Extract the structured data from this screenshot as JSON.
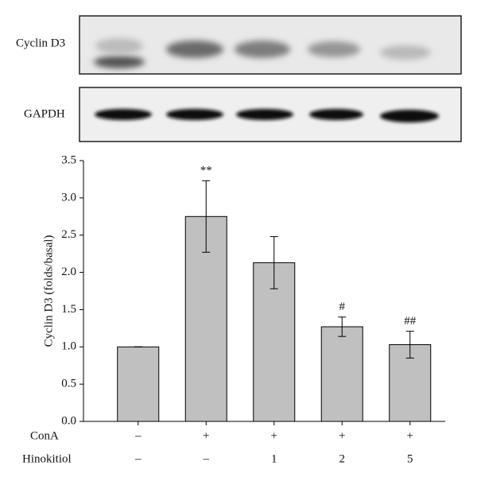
{
  "blots": [
    {
      "label": "Cyclin D3"
    },
    {
      "label": "GAPDH"
    }
  ],
  "chart_data": {
    "type": "bar",
    "y_label": "Cyclin D3 (folds/basal)",
    "values": [
      1.0,
      2.75,
      2.13,
      1.27,
      1.03
    ],
    "errors": [
      0,
      0.48,
      0.35,
      0.13,
      0.18
    ],
    "annotations": [
      null,
      "**",
      null,
      "#",
      "##"
    ],
    "color": "#c0c0c0",
    "ylim": [
      0,
      3.5
    ],
    "yticks": [
      {
        "value": 0,
        "label": "0.0"
      },
      0.5,
      {
        "value": 1,
        "label": "1.0"
      },
      1.5,
      {
        "value": 2,
        "label": "2.0"
      },
      2.5,
      {
        "value": 3,
        "label": "3.0"
      },
      3.5
    ],
    "conditions": [
      {
        "label": "ConA",
        "values": [
          "–",
          "+",
          "+",
          "+",
          "+"
        ]
      },
      {
        "label": "Hinokitiol",
        "values": [
          "–",
          "–",
          "1",
          "2",
          "5"
        ]
      }
    ]
  }
}
